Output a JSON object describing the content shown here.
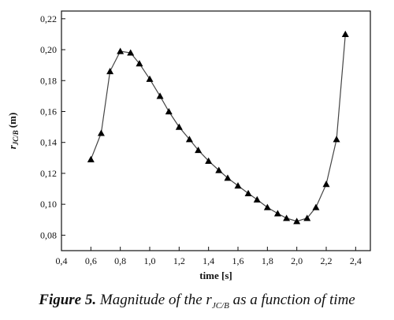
{
  "chart_data": {
    "type": "line",
    "xlabel": "time [s]",
    "ylabel_symbol": "r",
    "ylabel_subscript": "JC/B",
    "ylabel_unit": "(m)",
    "xlim": [
      0.4,
      2.5
    ],
    "ylim": [
      0.07,
      0.225
    ],
    "xticks": [
      0.4,
      0.6,
      0.8,
      1.0,
      1.2,
      1.4,
      1.6,
      1.8,
      2.0,
      2.2,
      2.4
    ],
    "xtick_labels": [
      "0,4",
      "0,6",
      "0,8",
      "1,0",
      "1,2",
      "1,4",
      "1,6",
      "1,8",
      "2,0",
      "2,2",
      "2,4"
    ],
    "yticks": [
      0.08,
      0.1,
      0.12,
      0.14,
      0.16,
      0.18,
      0.2,
      0.22
    ],
    "ytick_labels": [
      "0,08",
      "0,10",
      "0,12",
      "0,14",
      "0,16",
      "0,18",
      "0,20",
      "0,22"
    ],
    "grid": false,
    "marker": "triangle",
    "series": [
      {
        "x": [
          0.6,
          0.67,
          0.73,
          0.8,
          0.87,
          0.93,
          1.0,
          1.07,
          1.13,
          1.2,
          1.27,
          1.33,
          1.4,
          1.47,
          1.53,
          1.6,
          1.67,
          1.73,
          1.8,
          1.87,
          1.93,
          2.0,
          2.07,
          2.13,
          2.2,
          2.27,
          2.33
        ],
        "y": [
          0.129,
          0.146,
          0.186,
          0.199,
          0.198,
          0.191,
          0.181,
          0.17,
          0.16,
          0.15,
          0.142,
          0.135,
          0.128,
          0.122,
          0.117,
          0.112,
          0.107,
          0.103,
          0.098,
          0.094,
          0.091,
          0.089,
          0.091,
          0.098,
          0.113,
          0.142,
          0.21
        ]
      }
    ]
  },
  "caption": {
    "figure_label": "Figure 5.",
    "text_before": "Magnitude of the r",
    "subscript": "JC/B",
    "text_after": "as a function of time"
  }
}
